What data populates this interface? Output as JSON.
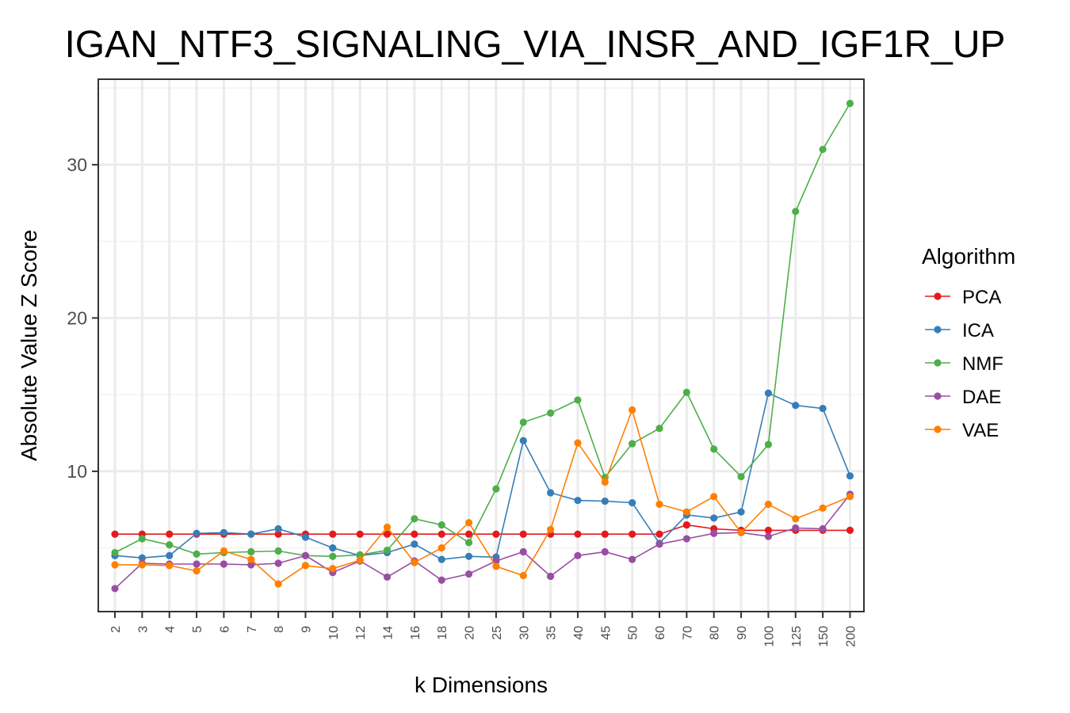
{
  "chart_data": {
    "type": "line",
    "title": "IGAN_NTF3_SIGNALING_VIA_INSR_AND_IGF1R_UP",
    "xlabel": "k Dimensions",
    "ylabel": "Absolute Value Z Score",
    "categories": [
      "2",
      "3",
      "4",
      "5",
      "6",
      "7",
      "8",
      "9",
      "10",
      "12",
      "14",
      "16",
      "18",
      "20",
      "25",
      "30",
      "35",
      "40",
      "45",
      "50",
      "60",
      "70",
      "80",
      "90",
      "100",
      "125",
      "150",
      "200"
    ],
    "ylim": [
      1,
      35
    ],
    "yticks": [
      "10",
      "20",
      "30"
    ],
    "grid": true,
    "legend": {
      "title": "Algorithm",
      "position": "right"
    },
    "series": [
      {
        "name": "PCA",
        "color": "#e41a1c",
        "values": [
          5.9,
          5.9,
          5.9,
          5.9,
          5.9,
          5.9,
          5.9,
          5.9,
          5.9,
          5.9,
          5.9,
          5.9,
          5.9,
          5.9,
          5.9,
          5.9,
          5.9,
          5.9,
          5.9,
          5.9,
          5.9,
          6.5,
          6.25,
          6.15,
          6.15,
          6.15,
          6.15,
          6.15
        ]
      },
      {
        "name": "ICA",
        "color": "#377eb8",
        "values": [
          4.5,
          4.35,
          4.5,
          5.95,
          6.0,
          5.9,
          6.25,
          5.7,
          5.0,
          4.5,
          4.7,
          5.25,
          4.25,
          4.45,
          4.4,
          12.0,
          8.6,
          8.1,
          8.05,
          7.95,
          5.3,
          7.15,
          6.95,
          7.35,
          15.1,
          14.3,
          14.1,
          9.7
        ]
      },
      {
        "name": "NMF",
        "color": "#4daf4a",
        "values": [
          4.7,
          5.6,
          5.2,
          4.6,
          4.7,
          4.75,
          4.8,
          4.5,
          4.45,
          4.55,
          4.85,
          6.9,
          6.5,
          5.35,
          8.85,
          13.2,
          13.8,
          14.65,
          9.6,
          11.8,
          12.8,
          15.15,
          11.45,
          9.65,
          11.75,
          26.95,
          31.0,
          34.0
        ]
      },
      {
        "name": "DAE",
        "color": "#984ea3",
        "values": [
          2.35,
          4.0,
          3.95,
          3.95,
          3.95,
          3.9,
          4.0,
          4.5,
          3.4,
          4.15,
          3.1,
          4.15,
          2.9,
          3.3,
          4.15,
          4.75,
          3.15,
          4.5,
          4.75,
          4.25,
          5.25,
          5.6,
          5.95,
          6.0,
          5.75,
          6.3,
          6.25,
          8.5
        ]
      },
      {
        "name": "VAE",
        "color": "#ff7f00",
        "values": [
          3.9,
          3.9,
          3.85,
          3.5,
          4.8,
          4.25,
          2.65,
          3.85,
          3.65,
          4.2,
          6.35,
          4.05,
          5.0,
          6.65,
          3.8,
          3.2,
          6.2,
          11.85,
          9.3,
          14.0,
          7.85,
          7.35,
          8.35,
          6.0,
          7.85,
          6.9,
          7.6,
          8.35
        ]
      }
    ]
  }
}
